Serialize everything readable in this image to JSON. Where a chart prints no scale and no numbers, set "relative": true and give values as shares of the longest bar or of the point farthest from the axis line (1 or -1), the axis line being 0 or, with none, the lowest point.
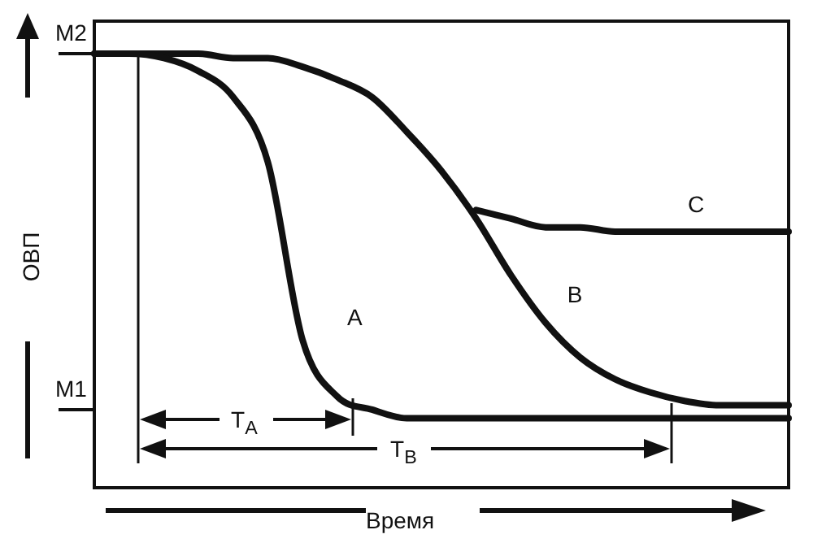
{
  "chart_data": {
    "type": "line",
    "relative": true,
    "xlabel": "Время",
    "ylabel": "ОВП",
    "categories": [
      null,
      null,
      null,
      null,
      null,
      null,
      null,
      null,
      null,
      null,
      null,
      null,
      null,
      null,
      null,
      null,
      null,
      null,
      null,
      null,
      null
    ],
    "series": [
      {
        "name": "A",
        "color": "#111111",
        "values": [
          1,
          1,
          0.99,
          0.96,
          0.9,
          0.75,
          0.34,
          0.21,
          0.18,
          0.16,
          0.16,
          0.16,
          0.16,
          0.16,
          0.16,
          0.16,
          0.16,
          0.16,
          0.16,
          0.16,
          0.16
        ]
      },
      {
        "name": "B",
        "color": "#111111",
        "values": [
          1,
          1,
          1,
          1,
          0.99,
          0.99,
          0.97,
          0.94,
          0.9,
          0.82,
          0.73,
          0.62,
          0.49,
          0.38,
          0.3,
          0.25,
          0.22,
          0.2,
          0.19,
          0.19,
          0.19
        ]
      },
      {
        "name": "C",
        "color": "#111111",
        "values": [
          null,
          null,
          null,
          null,
          null,
          null,
          null,
          null,
          null,
          null,
          null,
          0.64,
          0.62,
          0.6,
          0.6,
          0.59,
          0.59,
          0.59,
          0.59,
          0.59,
          0.59
        ]
      }
    ],
    "annotations": [
      "T$_{A}$",
      "T$_{B}$"
    ],
    "ref_lines": [
      {
        "axis": "y",
        "value": 0.18,
        "label": "M1"
      },
      {
        "axis": "y",
        "value": 1,
        "label": "M2"
      }
    ],
    "legend": false,
    "grid": false,
    "marker": "none",
    "line_style": "solid"
  }
}
